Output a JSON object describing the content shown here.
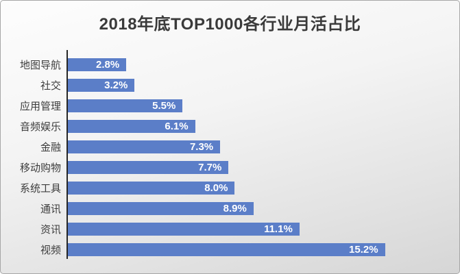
{
  "slide": {
    "background_top": "#fdfdfd",
    "background_bottom": "#d6d6d6",
    "border_color": "#a6a6a6"
  },
  "chart_data": {
    "type": "bar",
    "orientation": "horizontal",
    "title": "2018年底TOP1000各行业月活占比",
    "categories": [
      "地图导航",
      "社交",
      "应用管理",
      "音频娱乐",
      "金融",
      "移动购物",
      "系统工具",
      "通讯",
      "资讯",
      "视频"
    ],
    "values": [
      2.8,
      3.2,
      5.5,
      6.1,
      7.3,
      7.7,
      8.0,
      8.9,
      11.1,
      15.2
    ],
    "value_labels": [
      "2.8%",
      "3.2%",
      "5.5%",
      "6.1%",
      "7.3%",
      "7.7%",
      "8.0%",
      "8.9%",
      "11.1%",
      "15.2%"
    ],
    "xlabel": "",
    "ylabel": "",
    "xlim": [
      0,
      18.5
    ],
    "grid": false,
    "legend": false,
    "bar_color": "#5b7ec8",
    "value_label_color": "#ffffff",
    "title_color": "#3a3a3a",
    "category_label_color": "#3d3d3d",
    "axis_line_color": "#262626"
  }
}
